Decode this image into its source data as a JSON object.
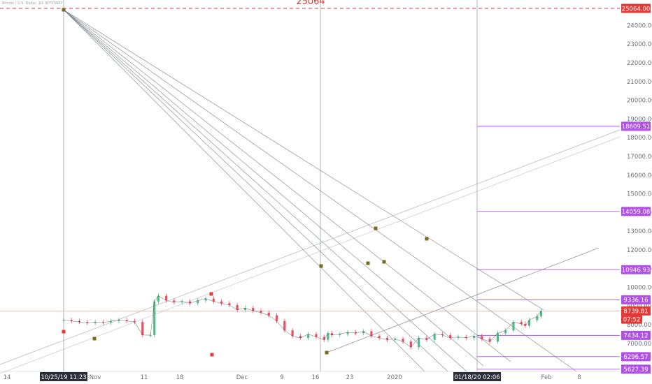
{
  "symbol_line": "Bitcoin / U.S. Dollar, 1D, BITSTAMP",
  "top_annotation": "25064",
  "colors": {
    "up": "#26a69a",
    "down": "#ef5350",
    "candle_up": "#53b987",
    "candle_down": "#eb4d5c",
    "ray": "#8f96a3",
    "fan_lines": "#7a7f89",
    "price_line": "#f4a38c",
    "resistance": "#e53935",
    "level": "#b150e6",
    "marker": "#7a6a1e",
    "marker_red": "#e53935"
  },
  "chart_data": {
    "type": "line",
    "xlabel": "",
    "ylabel": "",
    "ylim": [
      5400,
      25400
    ],
    "x_ticks": [
      "14",
      "Nov",
      "11",
      "18",
      "Dec",
      "9",
      "16",
      "23",
      "2020",
      "Feb",
      "8"
    ],
    "y_ticks": [
      "7000.00",
      "8000.00",
      "9000.00",
      "10000.00",
      "11000.00",
      "12000.00",
      "13000.00",
      "14000.00",
      "15000.00",
      "16000.00",
      "17000.00",
      "18000.00",
      "19000.00",
      "20000.00",
      "21000.00",
      "22000.00",
      "23000.00",
      "24000.00"
    ],
    "crosshair_dates": [
      "10/25/19",
      "11:23",
      "01/18/20",
      "02:06"
    ],
    "price": {
      "name": "BTCUSD",
      "x_days": [
        0,
        2,
        4,
        6,
        8,
        10,
        12,
        14,
        16,
        18,
        20,
        22,
        23,
        24,
        26,
        28,
        30,
        32,
        34,
        36,
        38,
        40,
        42,
        44,
        46,
        48,
        50,
        52,
        54,
        56,
        58,
        60,
        62,
        64,
        66,
        67,
        68,
        70,
        72,
        74,
        76,
        78,
        80,
        82,
        84,
        86,
        88,
        90,
        92,
        94,
        96,
        98,
        100,
        102,
        104,
        106,
        108,
        110,
        112,
        114,
        116,
        117,
        118,
        120,
        121
      ],
      "values": [
        8250,
        8200,
        8150,
        8100,
        8150,
        8120,
        8200,
        8250,
        8200,
        8150,
        7450,
        7450,
        9250,
        9550,
        9300,
        9200,
        9250,
        9150,
        9300,
        9400,
        9250,
        9150,
        9050,
        8800,
        8900,
        8750,
        8650,
        8500,
        8200,
        7700,
        7400,
        7300,
        7500,
        7350,
        7200,
        7550,
        7450,
        7500,
        7600,
        7550,
        7650,
        7400,
        7300,
        7200,
        7250,
        7100,
        6800,
        7300,
        7200,
        7500,
        7450,
        7300,
        7350,
        7300,
        7400,
        7250,
        7100,
        7550,
        7700,
        8150,
        8050,
        7950,
        8250,
        8450,
        8739.81
      ]
    },
    "price_labels": [
      {
        "label": "25064.00",
        "value": 25064,
        "kind": "resistance"
      },
      {
        "label": "18609.51",
        "value": 18609.51,
        "kind": "level"
      },
      {
        "label": "14059.08",
        "value": 14059.08,
        "kind": "level"
      },
      {
        "label": "10946.93",
        "value": 10946.93,
        "kind": "level"
      },
      {
        "label": "9336.16",
        "value": 9336.16,
        "kind": "level"
      },
      {
        "label": "8739.81",
        "value": 8739.81,
        "kind": "current"
      },
      {
        "label": "07:52",
        "value": 8300,
        "kind": "countdown"
      },
      {
        "label": "7434.12",
        "value": 7434.12,
        "kind": "level"
      },
      {
        "label": "6296.57",
        "value": 6296.57,
        "kind": "level"
      },
      {
        "label": "5627.39",
        "value": 5627.39,
        "kind": "level"
      }
    ]
  }
}
